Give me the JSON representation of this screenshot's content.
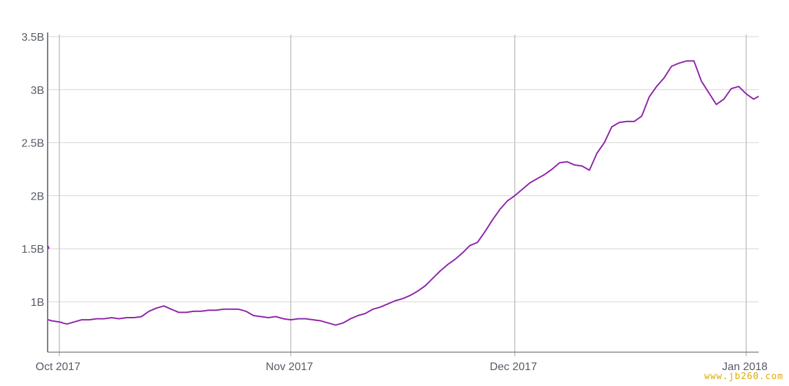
{
  "chart_data": {
    "type": "line",
    "title": "",
    "xlabel": "",
    "ylabel": "",
    "ylim": [
      0.5,
      3.5
    ],
    "xlim": [
      "2017-09-29",
      "2018-01-02"
    ],
    "grid": true,
    "y_ticks": [
      {
        "value": 1.0,
        "label": "1B"
      },
      {
        "value": 1.5,
        "label": "1.5B"
      },
      {
        "value": 2.0,
        "label": "2B"
      },
      {
        "value": 2.5,
        "label": "2.5B"
      },
      {
        "value": 3.0,
        "label": "3B"
      },
      {
        "value": 3.5,
        "label": "3.5B"
      }
    ],
    "x_ticks": [
      {
        "date": "2017-10-01",
        "label": "Oct 2017"
      },
      {
        "date": "2017-11-01",
        "label": "Nov 2017"
      },
      {
        "date": "2017-12-01",
        "label": "Dec 2017"
      },
      {
        "date": "2018-01-01",
        "label": "Jan 2018"
      }
    ],
    "series": [
      {
        "color": "#8e24aa",
        "points": [
          [
            "2017-09-29",
            0.84
          ],
          [
            "2017-09-30",
            0.82
          ],
          [
            "2017-10-01",
            0.81
          ],
          [
            "2017-10-02",
            0.79
          ],
          [
            "2017-10-03",
            0.81
          ],
          [
            "2017-10-04",
            0.83
          ],
          [
            "2017-10-05",
            0.83
          ],
          [
            "2017-10-06",
            0.84
          ],
          [
            "2017-10-07",
            0.84
          ],
          [
            "2017-10-08",
            0.85
          ],
          [
            "2017-10-09",
            0.84
          ],
          [
            "2017-10-10",
            0.85
          ],
          [
            "2017-10-11",
            0.85
          ],
          [
            "2017-10-12",
            0.86
          ],
          [
            "2017-10-13",
            0.91
          ],
          [
            "2017-10-14",
            0.94
          ],
          [
            "2017-10-15",
            0.96
          ],
          [
            "2017-10-16",
            0.93
          ],
          [
            "2017-10-17",
            0.9
          ],
          [
            "2017-10-18",
            0.9
          ],
          [
            "2017-10-19",
            0.91
          ],
          [
            "2017-10-20",
            0.91
          ],
          [
            "2017-10-21",
            0.92
          ],
          [
            "2017-10-22",
            0.92
          ],
          [
            "2017-10-23",
            0.93
          ],
          [
            "2017-10-24",
            0.93
          ],
          [
            "2017-10-25",
            0.93
          ],
          [
            "2017-10-26",
            0.91
          ],
          [
            "2017-10-27",
            0.87
          ],
          [
            "2017-10-28",
            0.86
          ],
          [
            "2017-10-29",
            0.85
          ],
          [
            "2017-10-30",
            0.86
          ],
          [
            "2017-10-31",
            0.84
          ],
          [
            "2017-11-01",
            0.83
          ],
          [
            "2017-11-02",
            0.84
          ],
          [
            "2017-11-03",
            0.84
          ],
          [
            "2017-11-04",
            0.83
          ],
          [
            "2017-11-05",
            0.82
          ],
          [
            "2017-11-06",
            0.8
          ],
          [
            "2017-11-07",
            0.78
          ],
          [
            "2017-11-08",
            0.8
          ],
          [
            "2017-11-09",
            0.84
          ],
          [
            "2017-11-10",
            0.87
          ],
          [
            "2017-11-11",
            0.89
          ],
          [
            "2017-11-12",
            0.93
          ],
          [
            "2017-11-13",
            0.95
          ],
          [
            "2017-11-14",
            0.98
          ],
          [
            "2017-11-15",
            1.01
          ],
          [
            "2017-11-16",
            1.03
          ],
          [
            "2017-11-17",
            1.06
          ],
          [
            "2017-11-18",
            1.1
          ],
          [
            "2017-11-19",
            1.15
          ],
          [
            "2017-11-20",
            1.22
          ],
          [
            "2017-11-21",
            1.29
          ],
          [
            "2017-11-22",
            1.35
          ],
          [
            "2017-11-23",
            1.4
          ],
          [
            "2017-11-24",
            1.46
          ],
          [
            "2017-11-25",
            1.53
          ],
          [
            "2017-11-26",
            1.56
          ],
          [
            "2017-11-27",
            1.66
          ],
          [
            "2017-11-28",
            1.77
          ],
          [
            "2017-11-29",
            1.87
          ],
          [
            "2017-11-30",
            1.95
          ],
          [
            "2017-12-01",
            2.0
          ],
          [
            "2017-12-02",
            2.06
          ],
          [
            "2017-12-03",
            2.12
          ],
          [
            "2017-12-04",
            2.16
          ],
          [
            "2017-12-05",
            2.2
          ],
          [
            "2017-12-06",
            2.25
          ],
          [
            "2017-12-07",
            2.31
          ],
          [
            "2017-12-08",
            2.32
          ],
          [
            "2017-12-09",
            2.29
          ],
          [
            "2017-12-10",
            2.28
          ],
          [
            "2017-12-11",
            2.24
          ],
          [
            "2017-12-12",
            2.4
          ],
          [
            "2017-12-13",
            2.5
          ],
          [
            "2017-12-14",
            2.65
          ],
          [
            "2017-12-15",
            2.69
          ],
          [
            "2017-12-16",
            2.7
          ],
          [
            "2017-12-17",
            2.7
          ],
          [
            "2017-12-18",
            2.75
          ],
          [
            "2017-12-19",
            2.93
          ],
          [
            "2017-12-20",
            3.03
          ],
          [
            "2017-12-21",
            3.11
          ],
          [
            "2017-12-22",
            3.22
          ],
          [
            "2017-12-23",
            3.25
          ],
          [
            "2017-12-24",
            3.27
          ],
          [
            "2017-12-25",
            3.27
          ],
          [
            "2017-12-26",
            3.08
          ],
          [
            "2017-12-27",
            2.97
          ],
          [
            "2017-12-28",
            2.86
          ],
          [
            "2017-12-29",
            2.91
          ],
          [
            "2017-12-30",
            3.01
          ],
          [
            "2017-12-31",
            3.03
          ],
          [
            "2018-01-01",
            2.96
          ],
          [
            "2018-01-02",
            2.91
          ],
          [
            "2018-01-03",
            2.95
          ]
        ]
      }
    ],
    "colors": {
      "line": "#8e24aa",
      "grid": "#d5d5d5",
      "vertical_grid": "#c4c4c4",
      "axis": "#555555",
      "tick_text": "#555a66"
    }
  },
  "left_edge_tick": "1.5B"
}
